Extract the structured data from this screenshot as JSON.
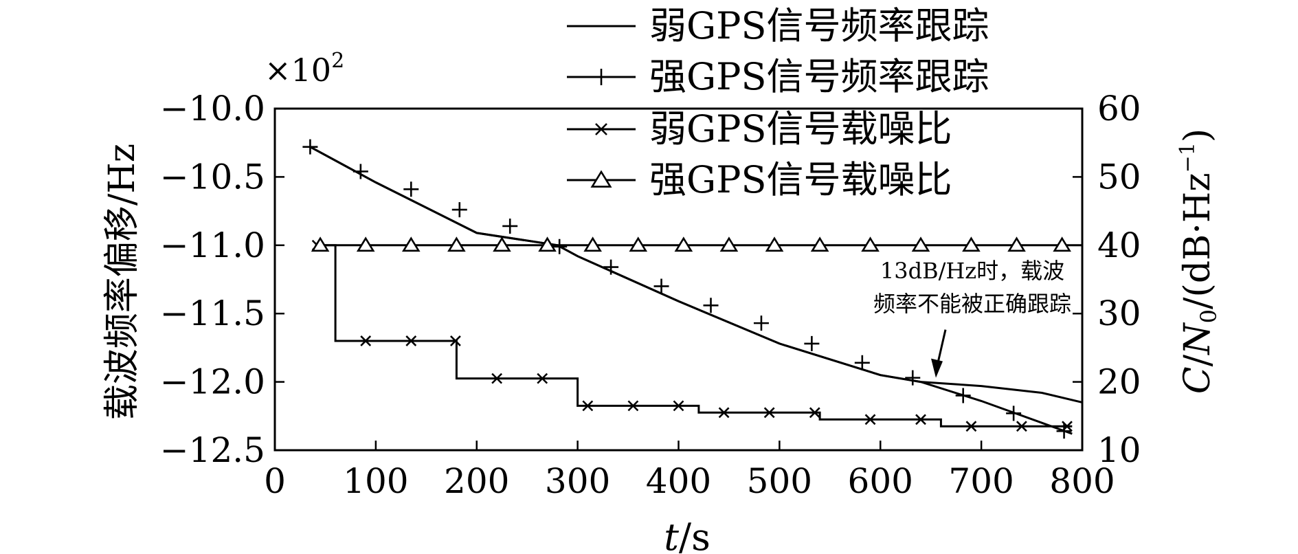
{
  "chart_data": {
    "type": "line",
    "xlabel_italic": "t",
    "xlabel_rest": "/s",
    "ylabel": "载波频率偏移/Hz",
    "ylabel_multiplier": "×10",
    "ylabel_multiplier_exp": "2",
    "y2label_italic_C": "C",
    "y2label_italic_N": "N",
    "y2label_sub": "0",
    "y2label_rest": "/(dB·Hz",
    "y2label_exp": "−1",
    "y2label_close": ")",
    "xlim": [
      0,
      800
    ],
    "ylim": [
      -12.5,
      -10.0
    ],
    "y2lim": [
      10,
      60
    ],
    "x_ticks": [
      0,
      100,
      200,
      300,
      400,
      500,
      600,
      700,
      800
    ],
    "y_ticks": [
      -10.0,
      -10.5,
      -11.0,
      -11.5,
      -12.0,
      -12.5
    ],
    "y_tick_labels": [
      "−10.0",
      "−10.5",
      "−11.0",
      "−11.5",
      "−12.0",
      "−12.5"
    ],
    "y2_ticks": [
      60,
      50,
      40,
      30,
      20,
      10
    ],
    "grid": false,
    "legend_position": "top-right",
    "series": [
      {
        "name": "弱GPS信号频率跟踪",
        "axis": "left",
        "marker": "none",
        "x": [
          35,
          100,
          200,
          280,
          300,
          400,
          500,
          600,
          640,
          700,
          760,
          800
        ],
        "y": [
          -10.28,
          -10.54,
          -10.91,
          -11.0,
          -11.08,
          -11.41,
          -11.72,
          -11.95,
          -12.0,
          -12.03,
          -12.08,
          -12.15
        ]
      },
      {
        "name": "强GPS信号频率跟踪",
        "axis": "left",
        "marker": "plus",
        "x": [
          35,
          100,
          200,
          280,
          300,
          400,
          500,
          600,
          640,
          700,
          760,
          790
        ],
        "y": [
          -10.28,
          -10.54,
          -10.91,
          -11.0,
          -11.08,
          -11.41,
          -11.72,
          -11.95,
          -12.0,
          -12.14,
          -12.3,
          -12.38
        ],
        "markers_x": [
          35,
          85,
          135,
          183,
          233,
          282,
          333,
          383,
          432,
          482,
          532,
          582,
          632,
          682,
          732,
          782
        ],
        "markers_y": [
          -10.28,
          -10.46,
          -10.59,
          -10.74,
          -10.86,
          -11.01,
          -11.16,
          -11.3,
          -11.44,
          -11.57,
          -11.72,
          -11.86,
          -11.97,
          -12.1,
          -12.23,
          -12.36
        ]
      },
      {
        "name": "弱GPS信号载噪比",
        "axis": "right",
        "marker": "x",
        "x": [
          40,
          60,
          60,
          180,
          180,
          300,
          300,
          420,
          420,
          540,
          540,
          660,
          660,
          790
        ],
        "y": [
          40,
          40,
          26,
          26,
          20.5,
          20.5,
          16.5,
          16.5,
          15.5,
          15.5,
          14.5,
          14.5,
          13.5,
          13.5
        ],
        "markers_x": [
          42,
          90,
          135,
          179,
          220,
          265,
          310,
          355,
          400,
          445,
          490,
          535,
          590,
          640,
          690,
          740,
          785
        ],
        "markers_y": [
          40,
          26,
          26,
          26,
          20.5,
          20.5,
          16.5,
          16.5,
          16.5,
          15.5,
          15.5,
          15.5,
          14.5,
          14.5,
          13.5,
          13.5,
          13.5
        ]
      },
      {
        "name": "强GPS信号载噪比",
        "axis": "right",
        "marker": "triangle",
        "x": [
          40,
          800
        ],
        "y": [
          40,
          40
        ],
        "markers_x": [
          45,
          90,
          135,
          180,
          225,
          270,
          315,
          360,
          405,
          450,
          495,
          540,
          590,
          640,
          690,
          735,
          780
        ],
        "markers_y": [
          40,
          40,
          40,
          40,
          40,
          40,
          40,
          40,
          40,
          40,
          40,
          40,
          40,
          40,
          40,
          40,
          40
        ]
      }
    ],
    "annotation": {
      "line1": "13dB/Hz时，载波",
      "line2": "频率不能被正确跟踪",
      "arrow_to_x": 640,
      "arrow_to_y": -11.99
    }
  }
}
